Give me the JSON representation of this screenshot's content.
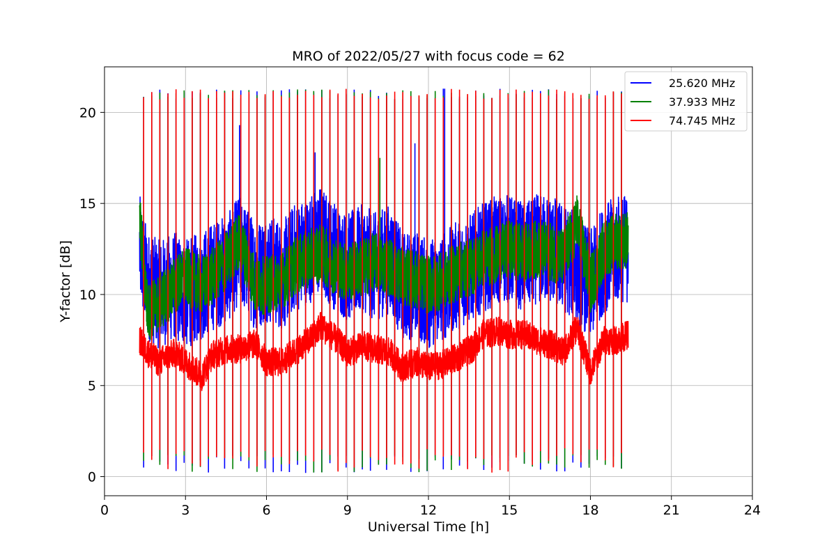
{
  "chart_data": {
    "type": "line",
    "title": "MRO of 2022/05/27 with focus code = 62",
    "xlabel": "Universal Time [h]",
    "ylabel": "Y-factor [dB]",
    "xlim": [
      0,
      24
    ],
    "ylim": [
      -1.05,
      22.5
    ],
    "x_ticks": [
      0,
      3,
      6,
      9,
      12,
      15,
      18,
      21,
      24
    ],
    "y_ticks": [
      0,
      5,
      10,
      15,
      20
    ],
    "grid": true,
    "legend_position": "top-right",
    "data_range_hours": [
      1.3,
      19.4
    ],
    "calibration_period_hours": 0.3,
    "calibration_levels_db": {
      "high": 21.2,
      "low": 0.2
    },
    "series": [
      {
        "name": "25.620 MHz",
        "color": "#0000ff",
        "baseline_hours": [
          1.3,
          1.6,
          2.0,
          2.6,
          3.0,
          3.6,
          4.0,
          4.6,
          5.0,
          5.6,
          6.0,
          6.6,
          7.0,
          7.6,
          8.0,
          8.6,
          9.0,
          9.6,
          10.0,
          10.6,
          11.0,
          11.6,
          12.0,
          12.6,
          13.0,
          13.6,
          14.0,
          14.6,
          15.0,
          15.6,
          16.0,
          16.6,
          17.0,
          17.5,
          18.0,
          18.5,
          19.0,
          19.4
        ],
        "baseline_db": [
          12.5,
          10.5,
          10.0,
          10.5,
          10.0,
          10.5,
          11.0,
          11.5,
          12.5,
          11.0,
          11.5,
          11.0,
          12.0,
          12.5,
          13.0,
          12.0,
          11.5,
          12.0,
          11.5,
          12.0,
          10.5,
          10.5,
          10.0,
          10.5,
          11.0,
          11.5,
          12.0,
          12.5,
          12.5,
          12.0,
          12.5,
          12.5,
          12.0,
          11.5,
          10.5,
          12.0,
          12.5,
          12.5
        ],
        "spread_db": 3.0,
        "spikes": [
          {
            "x": 5.0,
            "y": 19.3
          },
          {
            "x": 7.8,
            "y": 17.8
          },
          {
            "x": 11.5,
            "y": 18.3
          },
          {
            "x": 12.6,
            "y": 21.3
          }
        ]
      },
      {
        "name": "37.933 MHz",
        "color": "#008000",
        "baseline_hours": [
          1.3,
          1.6,
          2.0,
          2.6,
          3.0,
          3.6,
          4.0,
          4.6,
          5.0,
          5.6,
          6.0,
          6.6,
          7.0,
          7.6,
          8.0,
          8.6,
          9.0,
          9.6,
          10.0,
          10.6,
          11.0,
          11.6,
          12.0,
          12.6,
          13.0,
          13.6,
          14.0,
          14.6,
          15.0,
          15.6,
          16.0,
          16.6,
          17.0,
          17.5,
          18.0,
          18.5,
          19.0,
          19.4
        ],
        "baseline_db": [
          14.2,
          9.0,
          9.5,
          10.5,
          11.0,
          10.5,
          11.0,
          12.0,
          13.0,
          10.5,
          10.5,
          10.8,
          11.5,
          12.0,
          12.3,
          11.5,
          11.2,
          11.5,
          11.8,
          11.5,
          11.0,
          10.8,
          10.5,
          10.8,
          11.2,
          11.5,
          12.0,
          12.2,
          12.5,
          12.3,
          12.5,
          12.3,
          12.0,
          14.0,
          10.5,
          12.5,
          13.0,
          13.0
        ],
        "spread_db": 1.6,
        "spikes": [
          {
            "x": 10.2,
            "y": 17.5
          }
        ]
      },
      {
        "name": "74.745 MHz",
        "color": "#ff0000",
        "baseline_hours": [
          1.3,
          1.6,
          2.0,
          2.6,
          3.0,
          3.6,
          4.0,
          4.6,
          5.0,
          5.6,
          6.0,
          6.6,
          7.0,
          7.6,
          8.0,
          8.6,
          9.0,
          9.6,
          10.0,
          10.6,
          11.0,
          11.6,
          12.0,
          12.6,
          13.0,
          13.6,
          14.0,
          14.6,
          15.0,
          15.6,
          16.0,
          16.6,
          17.0,
          17.5,
          18.0,
          18.5,
          19.0,
          19.4
        ],
        "baseline_db": [
          7.5,
          6.8,
          6.3,
          6.8,
          6.3,
          5.5,
          6.7,
          7.0,
          7.0,
          7.3,
          6.3,
          6.3,
          6.8,
          7.5,
          8.3,
          7.5,
          6.8,
          7.2,
          7.0,
          6.8,
          6.0,
          6.3,
          6.0,
          6.2,
          6.5,
          7.0,
          7.8,
          8.0,
          7.8,
          7.8,
          7.5,
          7.2,
          6.8,
          8.2,
          5.8,
          7.5,
          7.5,
          7.8
        ],
        "spread_db": 0.8,
        "spikes": []
      }
    ]
  }
}
